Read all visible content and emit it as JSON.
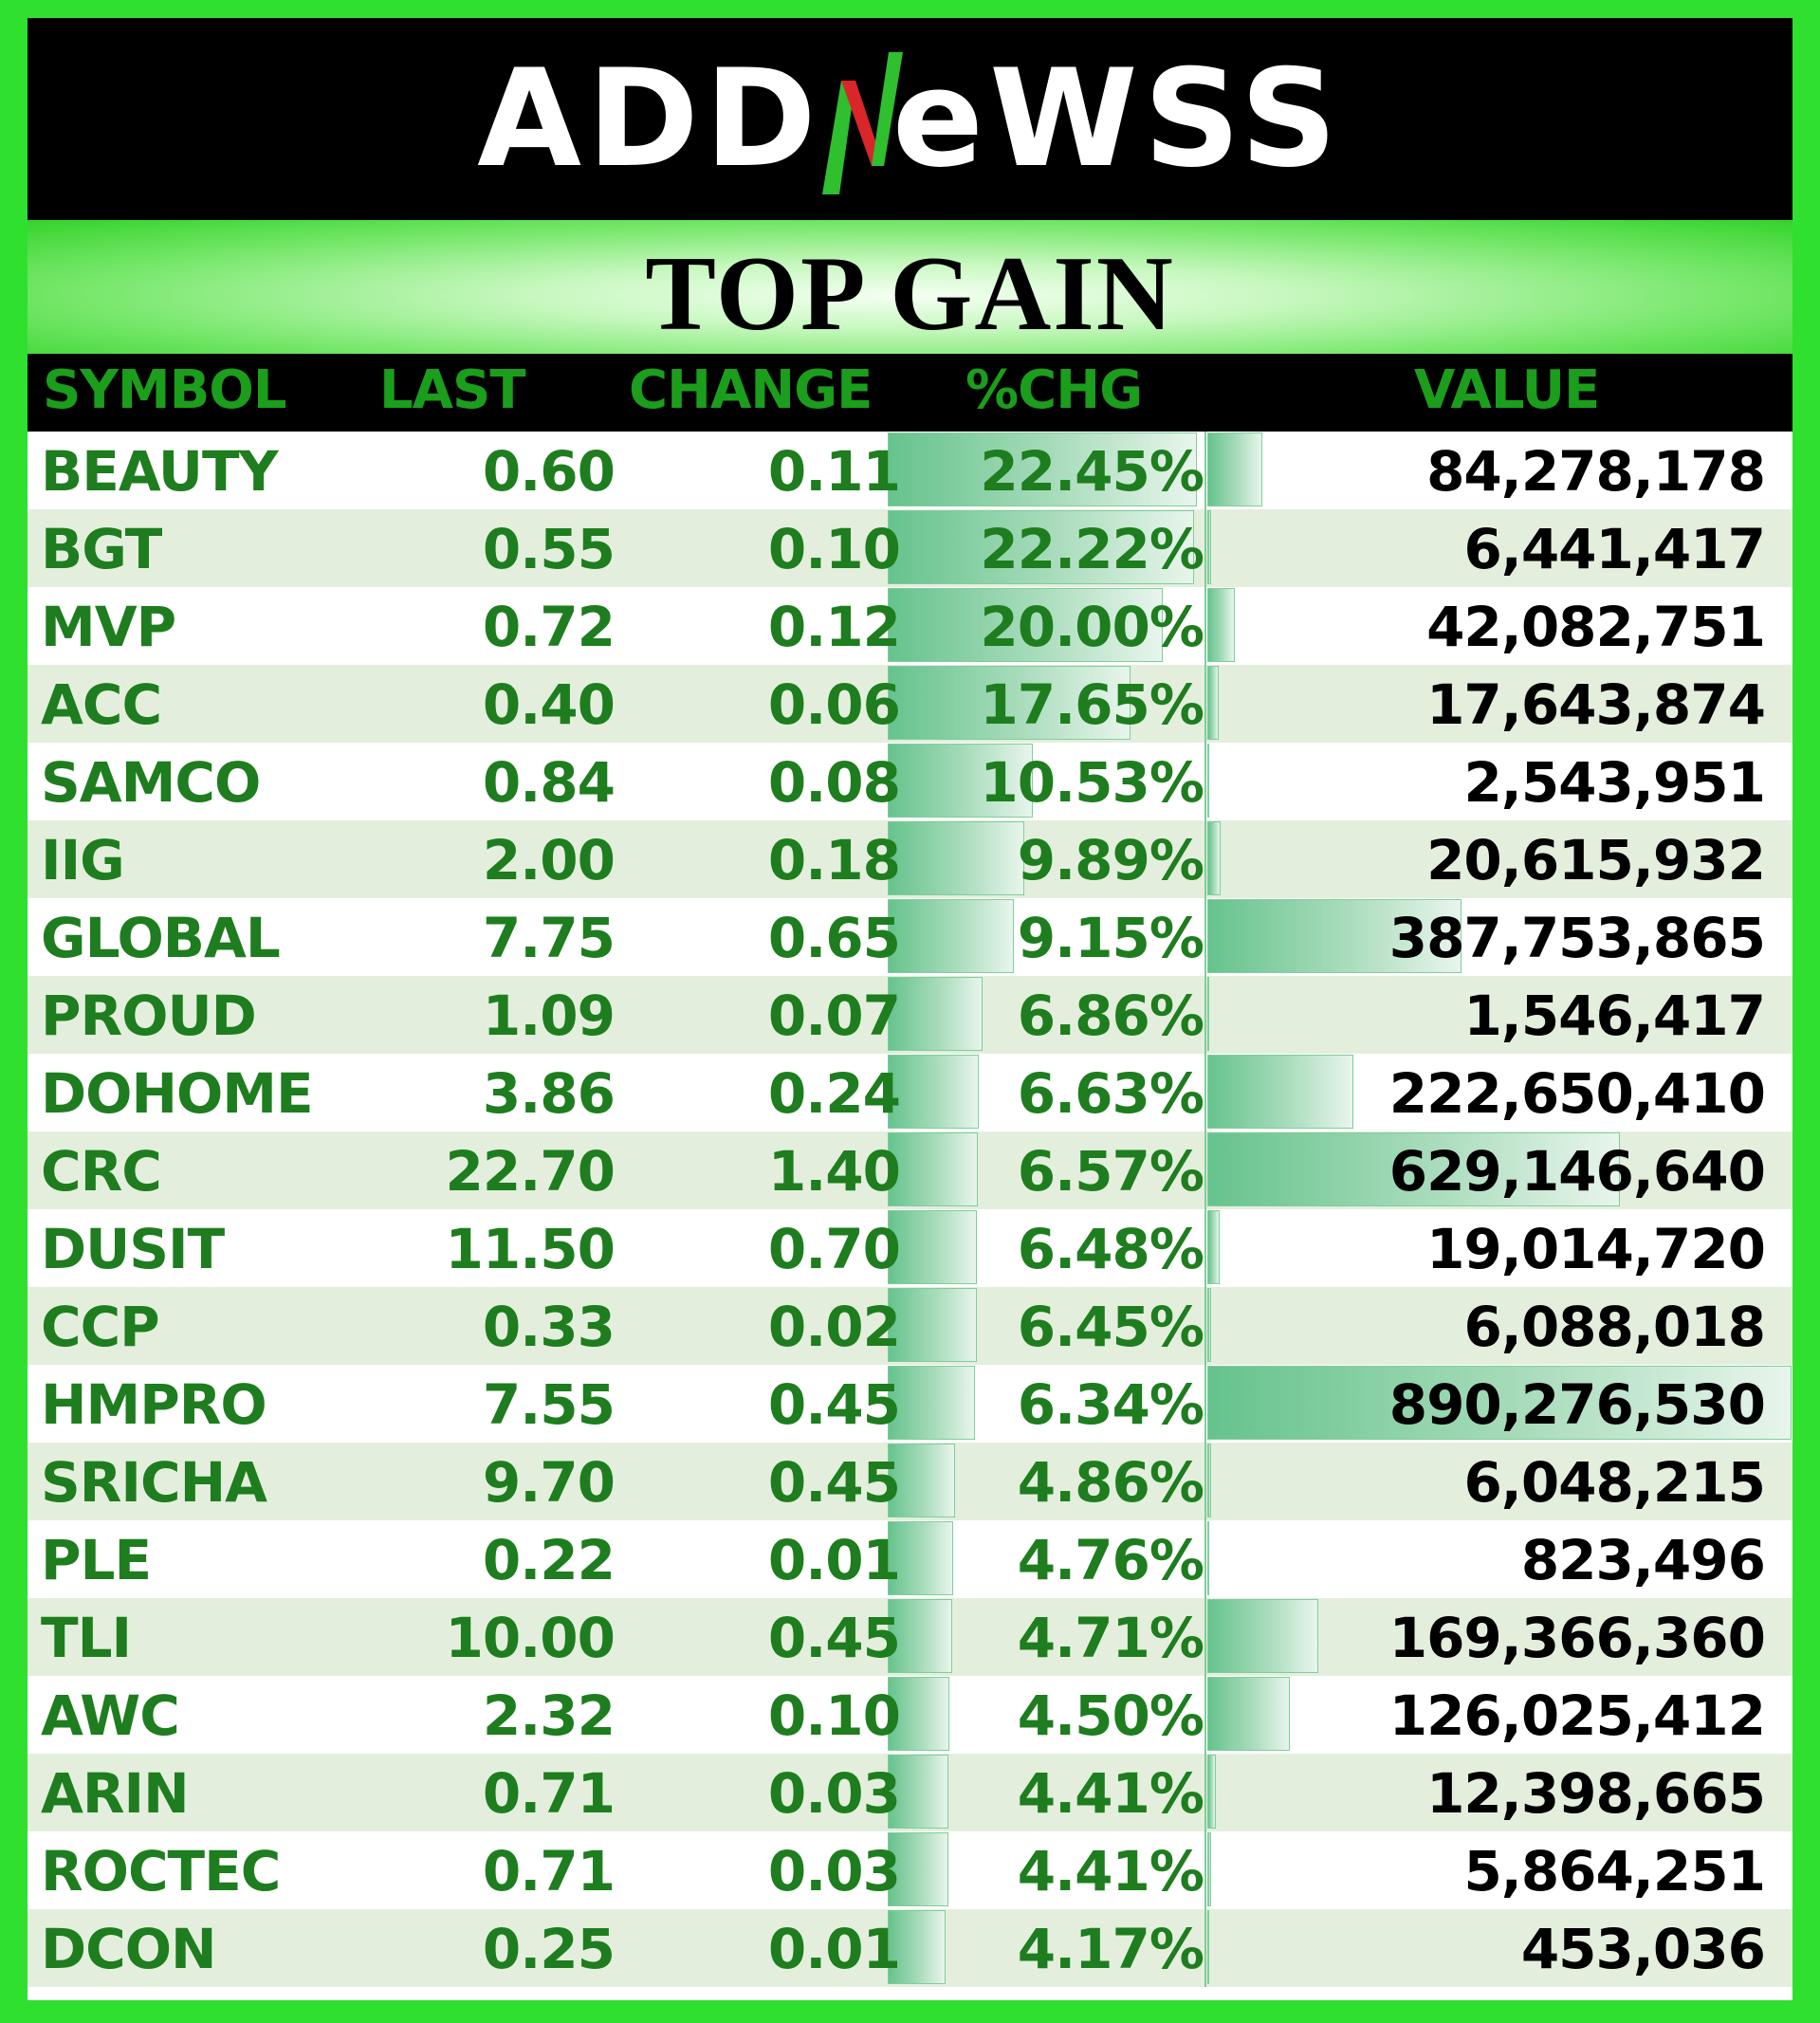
{
  "brand": {
    "logo_text_left": "ADD",
    "logo_text_right": "eWSS",
    "logo_letter": "N"
  },
  "title": "TOP GAIN",
  "headers": {
    "symbol": "SYMBOL",
    "last": "LAST",
    "change": "CHANGE",
    "pct": "%CHG",
    "value": "VALUE"
  },
  "colors": {
    "frame": "#2fe02f",
    "text_green": "#1e7d1e",
    "header_green": "#1b9e1b",
    "bar": "#66c38d",
    "alt_row": "#e3efdc"
  },
  "rows": [
    {
      "symbol": "BEAUTY",
      "last": "0.60",
      "change": "0.11",
      "pct": "22.45%",
      "pct_val": 22.45,
      "value": "84,278,178",
      "value_num": 84278178
    },
    {
      "symbol": "BGT",
      "last": "0.55",
      "change": "0.10",
      "pct": "22.22%",
      "pct_val": 22.22,
      "value": "6,441,417",
      "value_num": 6441417
    },
    {
      "symbol": "MVP",
      "last": "0.72",
      "change": "0.12",
      "pct": "20.00%",
      "pct_val": 20.0,
      "value": "42,082,751",
      "value_num": 42082751
    },
    {
      "symbol": "ACC",
      "last": "0.40",
      "change": "0.06",
      "pct": "17.65%",
      "pct_val": 17.65,
      "value": "17,643,874",
      "value_num": 17643874
    },
    {
      "symbol": "SAMCO",
      "last": "0.84",
      "change": "0.08",
      "pct": "10.53%",
      "pct_val": 10.53,
      "value": "2,543,951",
      "value_num": 2543951
    },
    {
      "symbol": "IIG",
      "last": "2.00",
      "change": "0.18",
      "pct": "9.89%",
      "pct_val": 9.89,
      "value": "20,615,932",
      "value_num": 20615932
    },
    {
      "symbol": "GLOBAL",
      "last": "7.75",
      "change": "0.65",
      "pct": "9.15%",
      "pct_val": 9.15,
      "value": "387,753,865",
      "value_num": 387753865
    },
    {
      "symbol": "PROUD",
      "last": "1.09",
      "change": "0.07",
      "pct": "6.86%",
      "pct_val": 6.86,
      "value": "1,546,417",
      "value_num": 1546417
    },
    {
      "symbol": "DOHOME",
      "last": "3.86",
      "change": "0.24",
      "pct": "6.63%",
      "pct_val": 6.63,
      "value": "222,650,410",
      "value_num": 222650410
    },
    {
      "symbol": "CRC",
      "last": "22.70",
      "change": "1.40",
      "pct": "6.57%",
      "pct_val": 6.57,
      "value": "629,146,640",
      "value_num": 629146640
    },
    {
      "symbol": "DUSIT",
      "last": "11.50",
      "change": "0.70",
      "pct": "6.48%",
      "pct_val": 6.48,
      "value": "19,014,720",
      "value_num": 19014720
    },
    {
      "symbol": "CCP",
      "last": "0.33",
      "change": "0.02",
      "pct": "6.45%",
      "pct_val": 6.45,
      "value": "6,088,018",
      "value_num": 6088018
    },
    {
      "symbol": "HMPRO",
      "last": "7.55",
      "change": "0.45",
      "pct": "6.34%",
      "pct_val": 6.34,
      "value": "890,276,530",
      "value_num": 890276530
    },
    {
      "symbol": "SRICHA",
      "last": "9.70",
      "change": "0.45",
      "pct": "4.86%",
      "pct_val": 4.86,
      "value": "6,048,215",
      "value_num": 6048215
    },
    {
      "symbol": "PLE",
      "last": "0.22",
      "change": "0.01",
      "pct": "4.76%",
      "pct_val": 4.76,
      "value": "823,496",
      "value_num": 823496
    },
    {
      "symbol": "TLI",
      "last": "10.00",
      "change": "0.45",
      "pct": "4.71%",
      "pct_val": 4.71,
      "value": "169,366,360",
      "value_num": 169366360
    },
    {
      "symbol": "AWC",
      "last": "2.32",
      "change": "0.10",
      "pct": "4.50%",
      "pct_val": 4.5,
      "value": "126,025,412",
      "value_num": 126025412
    },
    {
      "symbol": "ARIN",
      "last": "0.71",
      "change": "0.03",
      "pct": "4.41%",
      "pct_val": 4.41,
      "value": "12,398,665",
      "value_num": 12398665
    },
    {
      "symbol": "ROCTEC",
      "last": "0.71",
      "change": "0.03",
      "pct": "4.41%",
      "pct_val": 4.41,
      "value": "5,864,251",
      "value_num": 5864251
    },
    {
      "symbol": "DCON",
      "last": "0.25",
      "change": "0.01",
      "pct": "4.17%",
      "pct_val": 4.17,
      "value": "453,036",
      "value_num": 453036
    }
  ]
}
